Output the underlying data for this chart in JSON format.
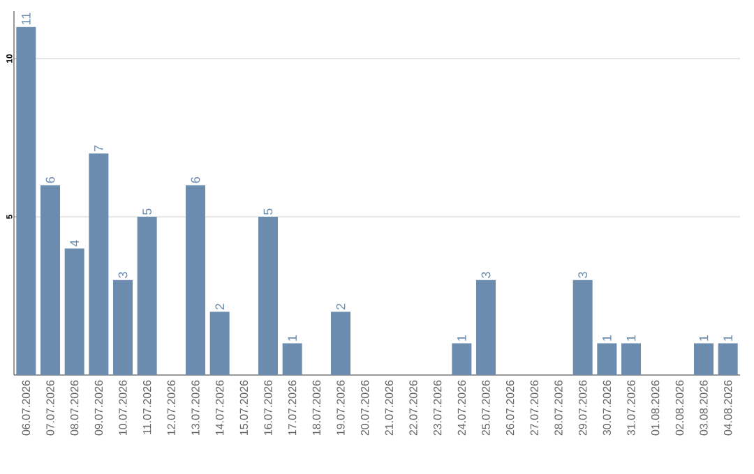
{
  "chart_data": {
    "type": "bar",
    "categories": [
      "06.07.2026",
      "07.07.2026",
      "08.07.2026",
      "09.07.2026",
      "10.07.2026",
      "11.07.2026",
      "12.07.2026",
      "13.07.2026",
      "14.07.2026",
      "15.07.2026",
      "16.07.2026",
      "17.07.2026",
      "18.07.2026",
      "19.07.2026",
      "20.07.2026",
      "21.07.2026",
      "22.07.2026",
      "23.07.2026",
      "24.07.2026",
      "25.07.2026",
      "26.07.2026",
      "27.07.2026",
      "28.07.2026",
      "29.07.2026",
      "30.07.2026",
      "31.07.2026",
      "01.08.2026",
      "02.08.2026",
      "03.08.2026",
      "04.08.2026"
    ],
    "values": [
      11,
      6,
      4,
      7,
      3,
      5,
      0,
      6,
      2,
      0,
      5,
      1,
      0,
      2,
      0,
      0,
      0,
      0,
      1,
      3,
      0,
      0,
      0,
      3,
      1,
      1,
      0,
      0,
      1,
      1
    ],
    "value_labels": [
      "11",
      "6",
      "4",
      "7",
      "3",
      "5",
      null,
      "6",
      "2",
      null,
      "5",
      "1",
      null,
      "2",
      null,
      null,
      null,
      null,
      "1",
      "3",
      null,
      null,
      null,
      "3",
      "1",
      "1",
      null,
      null,
      "1",
      "1"
    ],
    "color": "#6b8cae",
    "ylim": [
      0,
      11.5
    ],
    "yticks": [
      5,
      10
    ],
    "grid": "y"
  }
}
